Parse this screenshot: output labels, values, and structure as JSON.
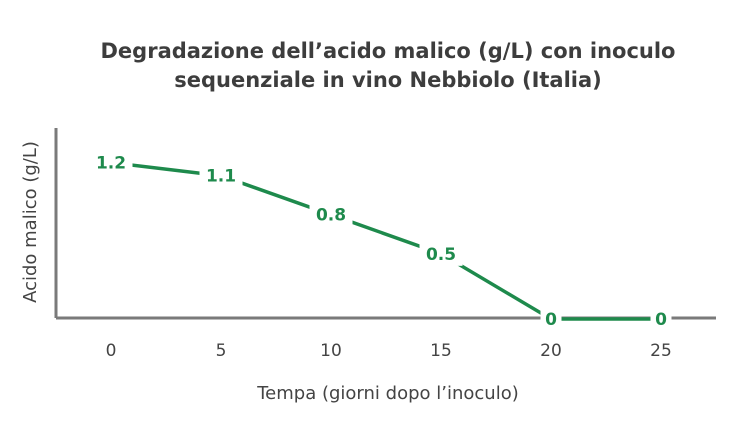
{
  "chart_data": {
    "type": "line",
    "title_lines": [
      "Degradazione dell’acido malico (g/L) con inoculo",
      "sequenziale in vino Nebbiolo (Italia)"
    ],
    "xlabel": "Tempa (giorni dopo l’inoculo)",
    "ylabel": "Acido malico (g/L)",
    "x": [
      0,
      5,
      10,
      15,
      20,
      25
    ],
    "x_tick_labels": [
      "0",
      "5",
      "10",
      "15",
      "20",
      "25"
    ],
    "series": [
      {
        "values": [
          1.2,
          1.1,
          0.8,
          0.5,
          0,
          0
        ],
        "data_labels": [
          "1.2",
          "1.1",
          "0.8",
          "0.5",
          "0",
          "0"
        ],
        "color": "#1e8a4c"
      }
    ],
    "xlim": [
      -2.5,
      27.5
    ],
    "ylim": [
      0,
      1.6
    ],
    "grid": false,
    "axis_color": "#7a7a7a",
    "text_color": "#444444"
  }
}
